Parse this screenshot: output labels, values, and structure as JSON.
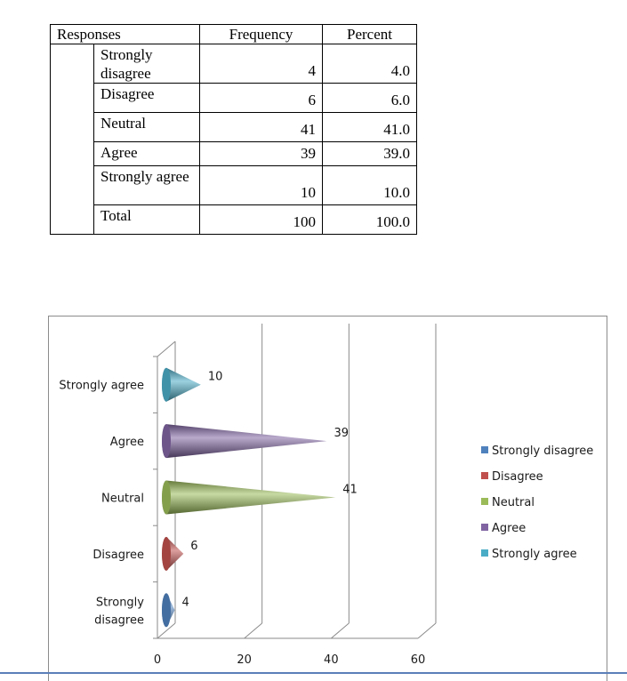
{
  "table": {
    "headers": [
      "Responses",
      "Frequency",
      "Percent"
    ],
    "rows": [
      {
        "response": "Strongly disagree",
        "frequency": "4",
        "percent": "4.0"
      },
      {
        "response": "Disagree",
        "frequency": "6",
        "percent": "6.0"
      },
      {
        "response": "Neutral",
        "frequency": "41",
        "percent": "41.0"
      },
      {
        "response": "Agree",
        "frequency": "39",
        "percent": "39.0"
      },
      {
        "response": "Strongly agree",
        "frequency": "10",
        "percent": "10.0"
      },
      {
        "response": "Total",
        "frequency": "100",
        "percent": "100.0"
      }
    ]
  },
  "chart_data": {
    "type": "bar",
    "orientation": "horizontal",
    "style": "3d-cone",
    "categories": [
      "Strongly disagree",
      "Disagree",
      "Neutral",
      "Agree",
      "Strongly agree"
    ],
    "values": [
      4,
      6,
      41,
      39,
      10
    ],
    "colors": [
      "#4f81bd",
      "#c0504d",
      "#9bbb59",
      "#8064a2",
      "#4bacc6"
    ],
    "data_labels": [
      "4",
      "6",
      "41",
      "39",
      "10"
    ],
    "xlim": [
      0,
      60
    ],
    "xticks": [
      "0",
      "20",
      "40",
      "60"
    ],
    "grid": true,
    "legend": {
      "position": "right",
      "entries": [
        "Strongly disagree",
        "Disagree",
        "Neutral",
        "Agree",
        "Strongly agree"
      ]
    },
    "title": "",
    "xlabel": "",
    "ylabel": ""
  }
}
